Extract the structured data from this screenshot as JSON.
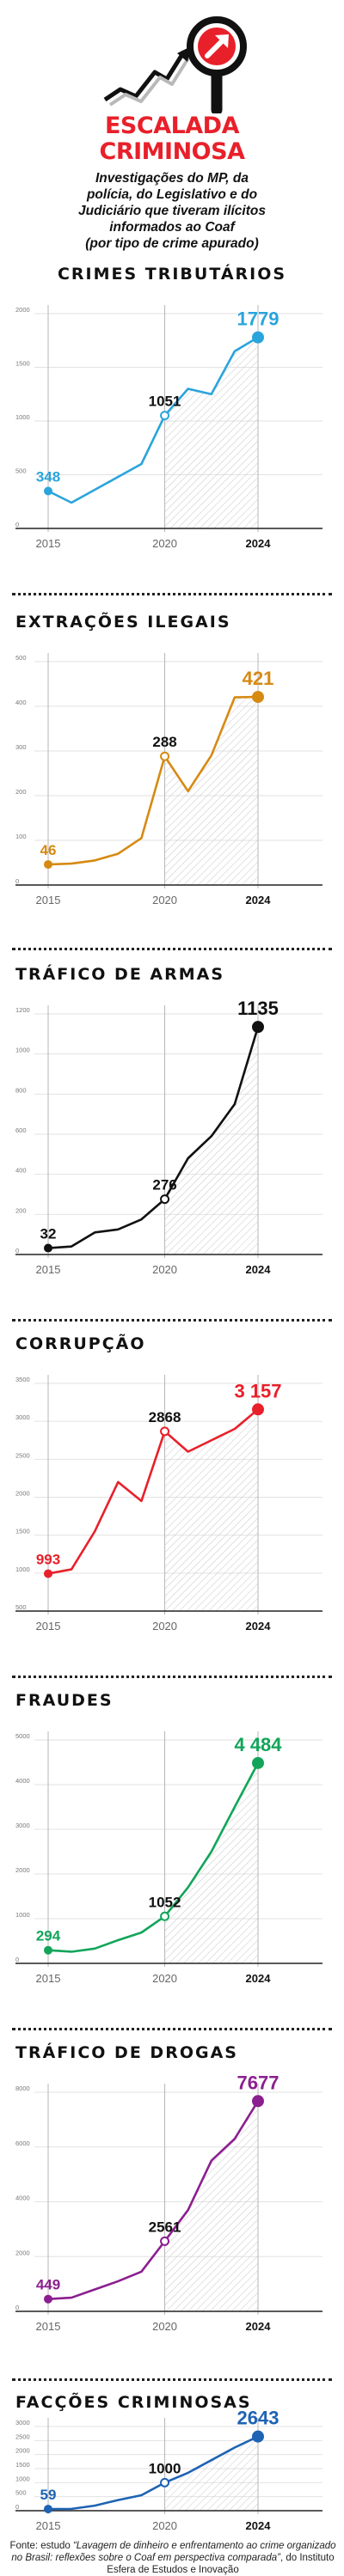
{
  "title_line1": "ESCALADA",
  "title_line2": "CRIMINOSA",
  "subtitle_lines": [
    "Investigações do MP, da",
    "polícia, do Legislativo e do",
    "Judiciário que tiveram ilícitos",
    "informados ao Coaf",
    "(por tipo de crime apurado)"
  ],
  "source_prefix": "Fonte: estudo ",
  "source_italic": "“Lavagem de dinheiro e enfrentamento ao crime organizado no Brasil: reflexões sobre o Coaf em perspectiva comparada”",
  "source_suffix": ", do Instituto Esfera de Estudos e Inovação",
  "chart_data": [
    {
      "type": "line",
      "title": "CRIMES TRIBUTÁRIOS",
      "color": "#2aa4dc",
      "x": [
        2015,
        2016,
        2017,
        2018,
        2019,
        2020,
        2021,
        2022,
        2023,
        2024
      ],
      "values": [
        348,
        240,
        360,
        480,
        600,
        1051,
        1300,
        1250,
        1650,
        1779
      ],
      "ylim": [
        0,
        2000
      ],
      "yticks": [
        0,
        500,
        1000,
        1500,
        2000
      ],
      "xticks": [
        2015,
        2020,
        2024
      ],
      "labels": [
        {
          "x": 2015,
          "value": 348,
          "text": "348",
          "pos": "above"
        },
        {
          "x": 2020,
          "value": 1051,
          "text": "1051",
          "pos": "above"
        },
        {
          "x": 2024,
          "value": 1779,
          "text": "1779",
          "pos": "above"
        }
      ]
    },
    {
      "type": "line",
      "title": "EXTRAÇÕES ILEGAIS",
      "color": "#d68a12",
      "x": [
        2015,
        2016,
        2017,
        2018,
        2019,
        2020,
        2021,
        2022,
        2023,
        2024
      ],
      "values": [
        46,
        48,
        55,
        70,
        105,
        288,
        210,
        290,
        420,
        421
      ],
      "ylim": [
        0,
        500
      ],
      "yticks": [
        0,
        100,
        200,
        300,
        400,
        500
      ],
      "xticks": [
        2015,
        2020,
        2024
      ],
      "labels": [
        {
          "x": 2015,
          "value": 46,
          "text": "46",
          "pos": "above"
        },
        {
          "x": 2020,
          "value": 288,
          "text": "288",
          "pos": "above"
        },
        {
          "x": 2024,
          "value": 421,
          "text": "421",
          "pos": "above"
        }
      ]
    },
    {
      "type": "line",
      "title": "TRÁFICO DE ARMAS",
      "color": "#111111",
      "x": [
        2015,
        2016,
        2017,
        2018,
        2019,
        2020,
        2021,
        2022,
        2023,
        2024
      ],
      "values": [
        32,
        40,
        110,
        125,
        175,
        276,
        480,
        590,
        750,
        1135
      ],
      "ylim": [
        0,
        1200
      ],
      "yticks": [
        0,
        200,
        400,
        600,
        800,
        1000,
        1200
      ],
      "xticks": [
        2015,
        2020,
        2024
      ],
      "labels": [
        {
          "x": 2015,
          "value": 32,
          "text": "32",
          "pos": "above"
        },
        {
          "x": 2020,
          "value": 276,
          "text": "276",
          "pos": "above"
        },
        {
          "x": 2024,
          "value": 1135,
          "text": "1135",
          "pos": "above"
        }
      ]
    },
    {
      "type": "line",
      "title": "CORRUPÇÃO",
      "color": "#e8202a",
      "x": [
        2015,
        2016,
        2017,
        2018,
        2019,
        2020,
        2021,
        2022,
        2023,
        2024
      ],
      "values": [
        993,
        1050,
        1550,
        2200,
        1950,
        2868,
        2600,
        2750,
        2900,
        3157
      ],
      "ylim": [
        500,
        3500
      ],
      "yticks": [
        500,
        1000,
        1500,
        2000,
        2500,
        3000,
        3500
      ],
      "xticks": [
        2015,
        2020,
        2024
      ],
      "labels": [
        {
          "x": 2015,
          "value": 993,
          "text": "993",
          "pos": "above"
        },
        {
          "x": 2020,
          "value": 2868,
          "text": "2868",
          "pos": "above"
        },
        {
          "x": 2024,
          "value": 3157,
          "text": "3 157",
          "pos": "above"
        }
      ]
    },
    {
      "type": "line",
      "title": "FRAUDES",
      "color": "#12a55a",
      "x": [
        2015,
        2016,
        2017,
        2018,
        2019,
        2020,
        2021,
        2022,
        2023,
        2024
      ],
      "values": [
        294,
        260,
        330,
        520,
        690,
        1052,
        1700,
        2500,
        3500,
        4484
      ],
      "ylim": [
        0,
        5000
      ],
      "yticks": [
        0,
        1000,
        2000,
        3000,
        4000,
        5000
      ],
      "xticks": [
        2015,
        2020,
        2024
      ],
      "labels": [
        {
          "x": 2015,
          "value": 294,
          "text": "294",
          "pos": "above"
        },
        {
          "x": 2020,
          "value": 1052,
          "text": "1052",
          "pos": "above"
        },
        {
          "x": 2024,
          "value": 4484,
          "text": "4 484",
          "pos": "above"
        }
      ]
    },
    {
      "type": "line",
      "title": "TRÁFICO DE DROGAS",
      "color": "#8b1f8f",
      "x": [
        2015,
        2016,
        2017,
        2018,
        2019,
        2020,
        2021,
        2022,
        2023,
        2024
      ],
      "values": [
        449,
        500,
        800,
        1100,
        1450,
        2561,
        3700,
        5500,
        6300,
        7677
      ],
      "ylim": [
        0,
        8000
      ],
      "yticks": [
        0,
        2000,
        4000,
        6000,
        8000
      ],
      "xticks": [
        2015,
        2020,
        2024
      ],
      "labels": [
        {
          "x": 2015,
          "value": 449,
          "text": "449",
          "pos": "above"
        },
        {
          "x": 2020,
          "value": 2561,
          "text": "2561",
          "pos": "above"
        },
        {
          "x": 2024,
          "value": 7677,
          "text": "7677",
          "pos": "above"
        }
      ]
    },
    {
      "type": "line",
      "title": "FACÇÕES CRIMINOSAS",
      "color": "#1e63b4",
      "x": [
        2015,
        2016,
        2017,
        2018,
        2019,
        2020,
        2021,
        2022,
        2023,
        2024
      ],
      "values": [
        59,
        65,
        180,
        380,
        550,
        1000,
        1350,
        1800,
        2250,
        2643
      ],
      "ylim": [
        0,
        3000
      ],
      "yticks": [
        0,
        500,
        1000,
        1500,
        2000,
        2500,
        3000
      ],
      "xticks": [
        2015,
        2020,
        2024
      ],
      "labels": [
        {
          "x": 2015,
          "value": 59,
          "text": "59",
          "pos": "above"
        },
        {
          "x": 2020,
          "value": 1000,
          "text": "1000",
          "pos": "above"
        },
        {
          "x": 2024,
          "value": 2643,
          "text": "2643",
          "pos": "above"
        }
      ]
    }
  ]
}
